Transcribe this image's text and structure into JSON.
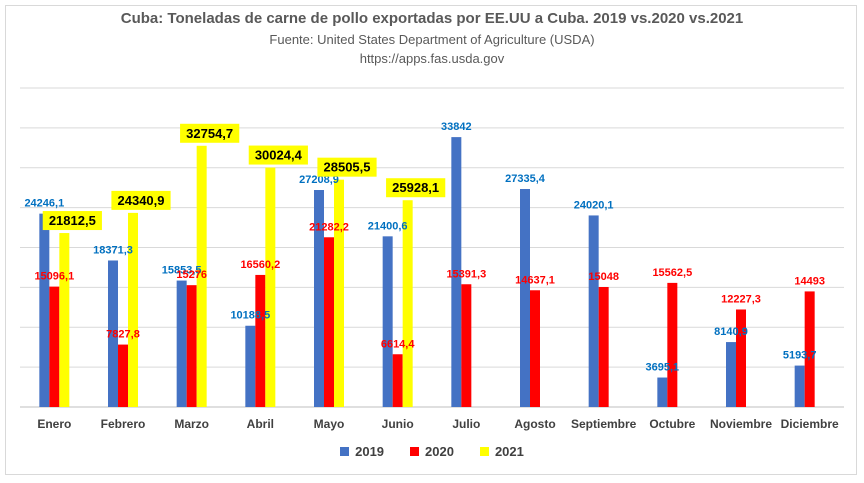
{
  "chart_data": {
    "type": "bar",
    "title": "Cuba: Toneladas de carne de pollo exportadas por EE.UU a Cuba. 2019 vs.2020 vs.2021",
    "subtitle": "Fuente: United States Department of Agriculture (USDA)",
    "source_url": "https://apps.fas.usda.gov",
    "categories": [
      "Enero",
      "Febrero",
      "Marzo",
      "Abril",
      "Mayo",
      "Junio",
      "Julio",
      "Agosto",
      "Septiembre",
      "Octubre",
      "Noviembre",
      "Diciembre"
    ],
    "series": [
      {
        "name": "2019",
        "color": "#4472c4",
        "label_color": "#0070c0",
        "values": [
          24246.1,
          18371.3,
          15853.5,
          10188.5,
          27208.9,
          21400.6,
          33842,
          27335.4,
          24020.1,
          3695.1,
          8140.9,
          5193.7
        ],
        "labels": [
          "24246,1",
          "18371,3",
          "15853,5",
          "10188,5",
          "27208,9",
          "21400,6",
          "33842",
          "27335,4",
          "24020,1",
          "3695,1",
          "8140,9",
          "5193,7"
        ]
      },
      {
        "name": "2020",
        "color": "#ff0000",
        "label_color": "#ff0000",
        "values": [
          15096.1,
          7827.8,
          15276,
          16560.2,
          21282.2,
          6614.4,
          15391.3,
          14637.1,
          15048,
          15562.5,
          12227.3,
          14493
        ],
        "labels": [
          "15096,1",
          "7827,8",
          "15276",
          "16560,2",
          "21282,2",
          "6614,4",
          "15391,3",
          "14637,1",
          "15048",
          "15562,5",
          "12227,3",
          "14493"
        ]
      },
      {
        "name": "2021",
        "color": "#ffff00",
        "label_color": "#000000",
        "values": [
          21812.5,
          24340.9,
          32754.7,
          30024.4,
          28505.5,
          25928.1,
          null,
          null,
          null,
          null,
          null,
          null
        ],
        "labels": [
          "21812,5",
          "24340,9",
          "32754,7",
          "30024,4",
          "28505,5",
          "25928,1",
          "",
          "",
          "",
          "",
          "",
          ""
        ]
      }
    ],
    "ylim": [
      0,
      40000
    ],
    "grid": true,
    "legend_position": "bottom"
  }
}
